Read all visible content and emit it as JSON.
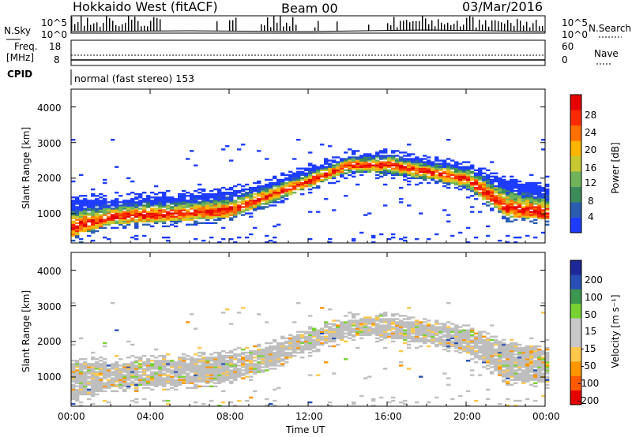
{
  "header": {
    "station": "Hokkaido West (fitACF)",
    "beam": "Beam 00",
    "date": "03/Mar/2016"
  },
  "top_panels": {
    "nsky_label": "N.Sky",
    "nsky_ticks": [
      "10^5",
      "10^0"
    ],
    "nsearch_label": "N.Search",
    "nsearch_ticks": [
      "10^5",
      "10^0"
    ],
    "freq_label_line1": "Freq.",
    "freq_label_line2": "[MHz]",
    "freq_ticks": [
      "18",
      "8"
    ],
    "nave_label": "Nave",
    "nave_ticks": [
      "60",
      "0"
    ],
    "cpid_label": "CPID",
    "cpid_text": "normal (fast stereo) 153"
  },
  "colors": {
    "power": [
      "#1e3cff",
      "#2a5db0",
      "#3c8c5a",
      "#6fb35a",
      "#c8c832",
      "#ffb400",
      "#ff7000",
      "#ff2a00",
      "#e60000"
    ],
    "velocity": [
      "#e60000",
      "#ff5a00",
      "#ff9600",
      "#ffc84b",
      "#c8c8c8",
      "#c8c8c8",
      "#78d232",
      "#3c9650",
      "#2850b4",
      "#1e2896"
    ],
    "ground_scatter": "#bebebe"
  },
  "chart_data": [
    {
      "type": "heatmap",
      "title": "",
      "xlabel": "Time UT",
      "ylabel": "Slant Range [km]",
      "x_ticks": [
        "00:00",
        "04:00",
        "08:00",
        "12:00",
        "16:00",
        "20:00",
        "00:00"
      ],
      "y_ticks": [
        "1000",
        "2000",
        "3000",
        "4000"
      ],
      "xlim_hours": [
        0,
        24
      ],
      "ylim_km": [
        180,
        4500
      ],
      "colorbar": {
        "label": "Power [dB]",
        "ticks": [
          "4",
          "8",
          "12",
          "16",
          "20",
          "24",
          "28"
        ],
        "range": [
          0,
          30
        ]
      },
      "bands": [
        {
          "t": 0,
          "lower_km": 350,
          "upper_km": 1350,
          "peak_km": 600
        },
        {
          "t": 2,
          "lower_km": 700,
          "upper_km": 1350,
          "peak_km": 900
        },
        {
          "t": 4,
          "lower_km": 750,
          "upper_km": 1450,
          "peak_km": 950
        },
        {
          "t": 6,
          "lower_km": 800,
          "upper_km": 1500,
          "peak_km": 1000
        },
        {
          "t": 8,
          "lower_km": 900,
          "upper_km": 1600,
          "peak_km": 1100
        },
        {
          "t": 10,
          "lower_km": 1300,
          "upper_km": 1850,
          "peak_km": 1500
        },
        {
          "t": 12,
          "lower_km": 1750,
          "upper_km": 2250,
          "peak_km": 1900
        },
        {
          "t": 14,
          "lower_km": 2150,
          "upper_km": 2600,
          "peak_km": 2350
        },
        {
          "t": 16,
          "lower_km": 2100,
          "upper_km": 2650,
          "peak_km": 2350
        },
        {
          "t": 18,
          "lower_km": 1950,
          "upper_km": 2450,
          "peak_km": 2150
        },
        {
          "t": 20,
          "lower_km": 1700,
          "upper_km": 2300,
          "peak_km": 1950
        },
        {
          "t": 22,
          "lower_km": 900,
          "upper_km": 1900,
          "peak_km": 1150
        },
        {
          "t": 24,
          "lower_km": 800,
          "upper_km": 1700,
          "peak_km": 1000
        }
      ]
    },
    {
      "type": "heatmap",
      "title": "",
      "xlabel": "Time UT",
      "ylabel": "Slant Range [km]",
      "x_ticks": [
        "00:00",
        "04:00",
        "08:00",
        "12:00",
        "16:00",
        "20:00",
        "00:00"
      ],
      "y_ticks": [
        "1000",
        "2000",
        "3000",
        "4000"
      ],
      "xlim_hours": [
        0,
        24
      ],
      "ylim_km": [
        180,
        4500
      ],
      "colorbar": {
        "label": "Velocity [m s⁻¹]",
        "ticks": [
          "200",
          "100",
          "50",
          "15",
          "-15",
          "-50",
          "-100",
          "-200"
        ],
        "range": [
          -250,
          250
        ]
      }
    }
  ]
}
